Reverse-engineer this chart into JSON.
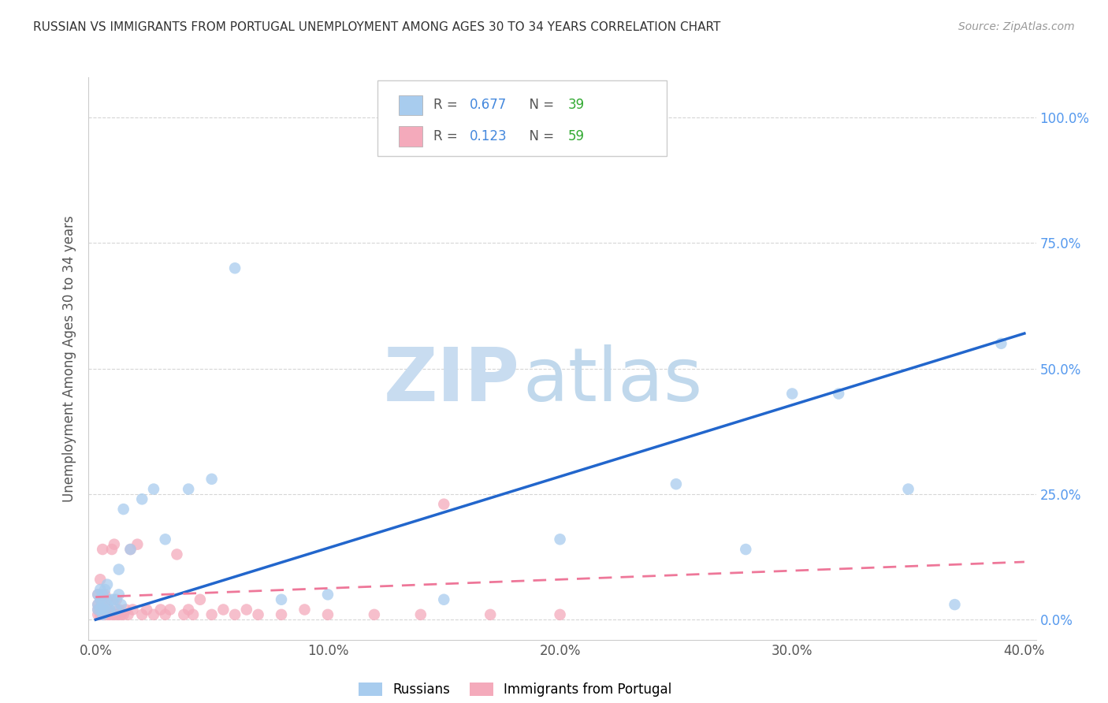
{
  "title": "RUSSIAN VS IMMIGRANTS FROM PORTUGAL UNEMPLOYMENT AMONG AGES 30 TO 34 YEARS CORRELATION CHART",
  "source": "Source: ZipAtlas.com",
  "ylabel": "Unemployment Among Ages 30 to 34 years",
  "xlim": [
    -0.003,
    0.405
  ],
  "ylim": [
    -0.04,
    1.08
  ],
  "yticks": [
    0.0,
    0.25,
    0.5,
    0.75,
    1.0
  ],
  "xticks": [
    0.0,
    0.1,
    0.2,
    0.3,
    0.4
  ],
  "legend_r1": "R = ",
  "legend_v1": "0.677",
  "legend_n1_label": "N = ",
  "legend_n1_val": "39",
  "legend_r2": "R = ",
  "legend_v2": "0.123",
  "legend_n2_label": "N = ",
  "legend_n2_val": "59",
  "color_russian": "#A8CCEE",
  "color_portugal": "#F4AABB",
  "color_russian_line": "#2266CC",
  "color_portugal_line": "#EE7799",
  "color_legend_val": "#4488DD",
  "color_legend_n": "#33AA33",
  "watermark_zip_color": "#C8DCF0",
  "watermark_atlas_color": "#C0D8EC",
  "russians_x": [
    0.001,
    0.001,
    0.001,
    0.002,
    0.002,
    0.002,
    0.003,
    0.003,
    0.003,
    0.004,
    0.004,
    0.005,
    0.005,
    0.006,
    0.007,
    0.008,
    0.009,
    0.01,
    0.01,
    0.011,
    0.012,
    0.015,
    0.02,
    0.025,
    0.03,
    0.04,
    0.05,
    0.06,
    0.08,
    0.1,
    0.15,
    0.2,
    0.25,
    0.28,
    0.3,
    0.32,
    0.35,
    0.37,
    0.39
  ],
  "russians_y": [
    0.02,
    0.03,
    0.05,
    0.02,
    0.04,
    0.06,
    0.01,
    0.03,
    0.05,
    0.02,
    0.06,
    0.03,
    0.07,
    0.02,
    0.04,
    0.04,
    0.02,
    0.05,
    0.1,
    0.03,
    0.22,
    0.14,
    0.24,
    0.26,
    0.16,
    0.26,
    0.28,
    0.7,
    0.04,
    0.05,
    0.04,
    0.16,
    0.27,
    0.14,
    0.45,
    0.45,
    0.26,
    0.03,
    0.55
  ],
  "portugal_x": [
    0.001,
    0.001,
    0.001,
    0.001,
    0.002,
    0.002,
    0.002,
    0.002,
    0.003,
    0.003,
    0.003,
    0.003,
    0.004,
    0.004,
    0.004,
    0.005,
    0.005,
    0.005,
    0.006,
    0.006,
    0.007,
    0.007,
    0.008,
    0.008,
    0.009,
    0.009,
    0.01,
    0.01,
    0.011,
    0.012,
    0.013,
    0.014,
    0.015,
    0.016,
    0.018,
    0.02,
    0.022,
    0.025,
    0.028,
    0.03,
    0.032,
    0.035,
    0.038,
    0.04,
    0.042,
    0.045,
    0.05,
    0.055,
    0.06,
    0.065,
    0.07,
    0.08,
    0.09,
    0.1,
    0.12,
    0.14,
    0.15,
    0.17,
    0.2
  ],
  "portugal_y": [
    0.01,
    0.02,
    0.03,
    0.05,
    0.01,
    0.02,
    0.04,
    0.08,
    0.01,
    0.02,
    0.04,
    0.14,
    0.01,
    0.02,
    0.05,
    0.01,
    0.02,
    0.04,
    0.01,
    0.02,
    0.01,
    0.14,
    0.01,
    0.15,
    0.01,
    0.04,
    0.01,
    0.02,
    0.01,
    0.01,
    0.02,
    0.01,
    0.14,
    0.02,
    0.15,
    0.01,
    0.02,
    0.01,
    0.02,
    0.01,
    0.02,
    0.13,
    0.01,
    0.02,
    0.01,
    0.04,
    0.01,
    0.02,
    0.01,
    0.02,
    0.01,
    0.01,
    0.02,
    0.01,
    0.01,
    0.01,
    0.23,
    0.01,
    0.01
  ],
  "russian_line_x": [
    0.0,
    0.4
  ],
  "russian_line_y": [
    0.0,
    0.57
  ],
  "portugal_line_x": [
    0.0,
    0.4
  ],
  "portugal_line_y": [
    0.045,
    0.115
  ]
}
